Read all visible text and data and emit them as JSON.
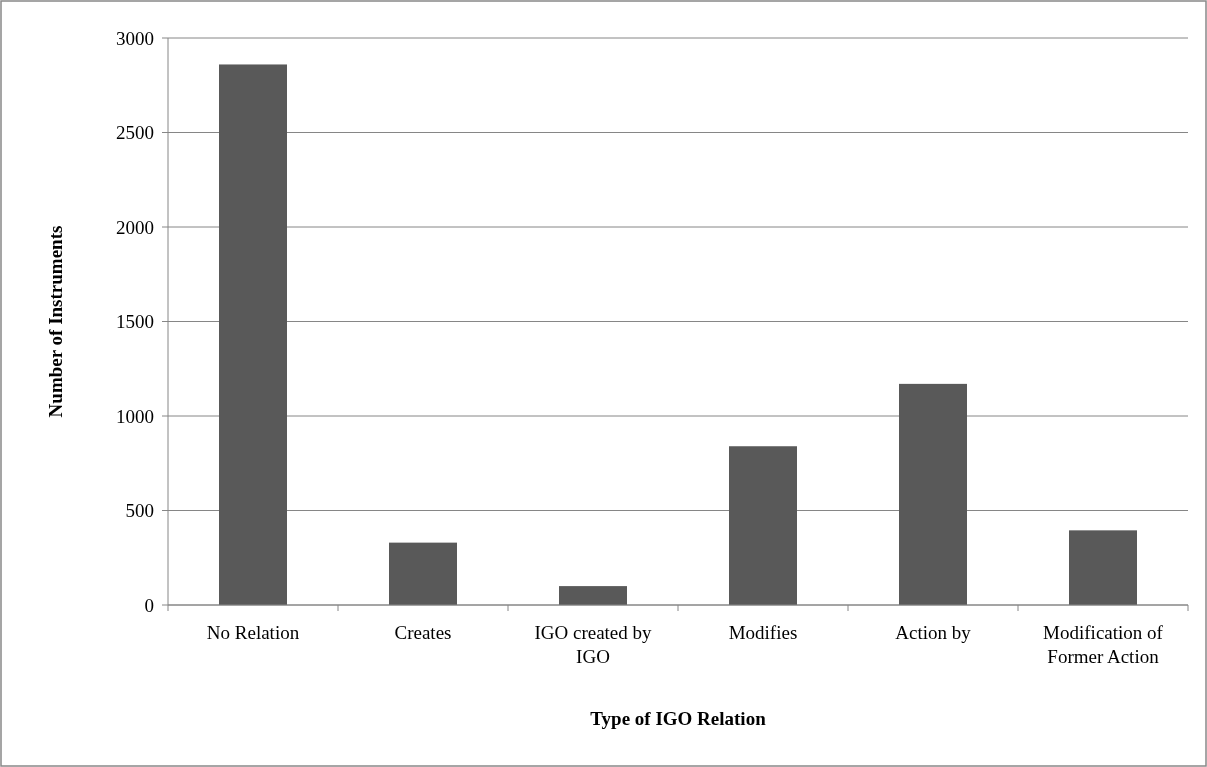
{
  "chart_data": {
    "type": "bar",
    "xlabel": "Type of IGO Relation",
    "ylabel": "Number of Instruments",
    "categories": [
      "No Relation",
      "Creates",
      "IGO created by IGO",
      "Modifies",
      "Action by",
      "Modification of Former Action"
    ],
    "values": [
      2860,
      330,
      100,
      840,
      1170,
      395
    ],
    "color": "#595959",
    "ylim": [
      0,
      3000
    ],
    "yticks": [
      0,
      500,
      1000,
      1500,
      2000,
      2500,
      3000
    ],
    "grid": "y"
  }
}
